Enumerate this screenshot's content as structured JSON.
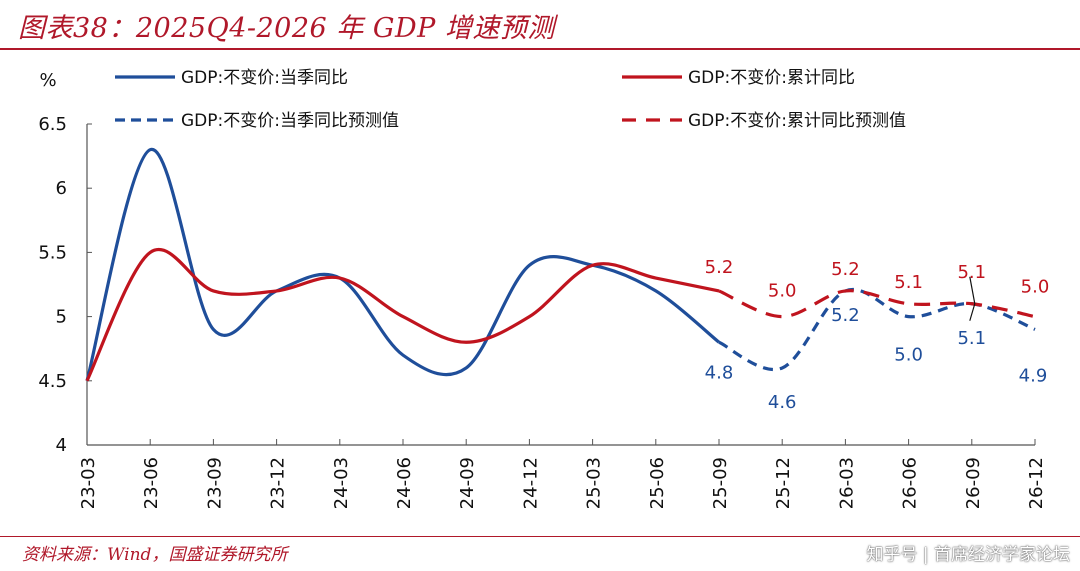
{
  "header": {
    "title": "图表38：2025Q4-2026 年 GDP 增速预测"
  },
  "footer": {
    "source": "资料来源：Wind，国盛证券研究所",
    "watermark": "知乎号 | 首席经济学家论坛"
  },
  "colors": {
    "quarterly": "#1F4E9A",
    "cumulative": "#C0141E",
    "title": "#B0182A"
  },
  "chart_data": {
    "type": "line",
    "title": "2025Q4-2026 年 GDP 增速预测",
    "xlabel": "",
    "ylabel": "%",
    "ylim": [
      4,
      6.5
    ],
    "yticks": [
      "4",
      "4.5",
      "5",
      "5.5",
      "6",
      "6.5"
    ],
    "ytick_values": [
      4,
      4.5,
      5,
      5.5,
      6,
      6.5
    ],
    "grid": false,
    "legend_position": "top",
    "categories": [
      "23-03",
      "23-06",
      "23-09",
      "23-12",
      "24-03",
      "24-06",
      "24-09",
      "24-12",
      "25-03",
      "25-06",
      "25-09",
      "25-12",
      "26-03",
      "26-06",
      "26-09",
      "26-12"
    ],
    "series": [
      {
        "name": "GDP:不变价:当季同比",
        "color_key": "quarterly",
        "style": "solid",
        "values": [
          4.5,
          6.3,
          4.9,
          5.2,
          5.3,
          4.7,
          4.6,
          5.4,
          5.4,
          5.2,
          4.8,
          null,
          null,
          null,
          null,
          null
        ]
      },
      {
        "name": "GDP:不变价:累计同比",
        "color_key": "cumulative",
        "style": "solid",
        "values": [
          4.5,
          5.5,
          5.2,
          5.2,
          5.3,
          5.0,
          4.8,
          5.0,
          5.4,
          5.3,
          5.2,
          null,
          null,
          null,
          null,
          null
        ]
      },
      {
        "name": "GDP:不变价:当季同比预测值",
        "color_key": "quarterly",
        "style": "dashed",
        "values": [
          null,
          null,
          null,
          null,
          null,
          null,
          null,
          null,
          null,
          null,
          4.8,
          4.6,
          5.2,
          5.0,
          5.1,
          4.9
        ]
      },
      {
        "name": "GDP:不变价:累计同比预测值",
        "color_key": "cumulative",
        "style": "dashed",
        "values": [
          null,
          null,
          null,
          null,
          null,
          null,
          null,
          null,
          null,
          null,
          5.2,
          5.0,
          5.2,
          5.1,
          5.1,
          5.0
        ]
      }
    ],
    "annotations": {
      "quarterly_labels": [
        {
          "category": "25-09",
          "text": "4.8"
        },
        {
          "category": "25-12",
          "text": "4.6"
        },
        {
          "category": "26-03",
          "text": "5.2"
        },
        {
          "category": "26-06",
          "text": "5.0"
        },
        {
          "category": "26-09",
          "text": "5.1"
        },
        {
          "category": "26-12",
          "text": "4.9"
        }
      ],
      "cumulative_labels": [
        {
          "category": "25-09",
          "text": "5.2"
        },
        {
          "category": "25-12",
          "text": "5.0"
        },
        {
          "category": "26-03",
          "text": "5.2"
        },
        {
          "category": "26-06",
          "text": "5.1"
        },
        {
          "category": "26-09",
          "text": "5.1"
        },
        {
          "category": "26-12",
          "text": "5.0"
        }
      ]
    }
  }
}
